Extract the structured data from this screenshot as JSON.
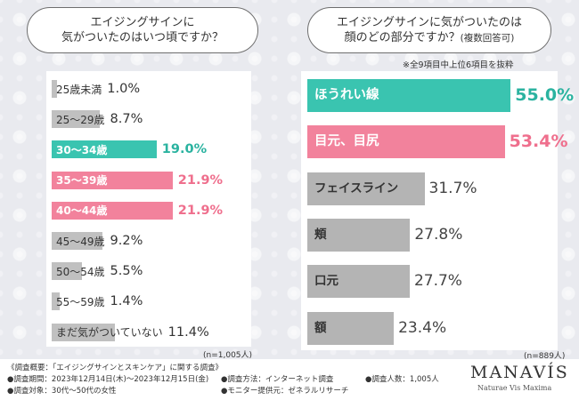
{
  "left_question": {
    "line1": "エイジングサインに",
    "line2": "気がついたのはいつ頃ですか？"
  },
  "right_question": {
    "line1": "エイジングサインに気がついたのは",
    "line2": "顔のどの部分ですか？",
    "line2_small": "(複数回答可)"
  },
  "right_note": "※全9項目中上位6項目を抜粋",
  "left_n": "(n=1,005人)",
  "right_n": "(n=889人)",
  "chart_data": [
    {
      "type": "bar",
      "title": "エイジングサインに気がついたのはいつ頃ですか？",
      "unit": "%",
      "categories": [
        "25歳未満",
        "25〜29歳",
        "30〜34歳",
        "35〜39歳",
        "40〜44歳",
        "45〜49歳",
        "50〜54歳",
        "55〜59歳",
        "まだ気がついていない"
      ],
      "values": [
        1.0,
        8.7,
        19.0,
        21.9,
        21.9,
        9.2,
        5.5,
        1.4,
        11.4
      ],
      "value_labels": [
        "1.0%",
        "8.7%",
        "19.0%",
        "21.9%",
        "21.9%",
        "9.2%",
        "5.5%",
        "1.4%",
        "11.4%"
      ],
      "highlight": [
        "none",
        "none",
        "teal",
        "pink",
        "pink",
        "none",
        "none",
        "none",
        "none"
      ],
      "orientation": "horizontal"
    },
    {
      "type": "bar",
      "title": "エイジングサインに気がついたのは顔のどの部分ですか？(複数回答可)",
      "unit": "%",
      "categories": [
        "ほうれい線",
        "目元、目尻",
        "フェイスライン",
        "頬",
        "口元",
        "額"
      ],
      "values": [
        55.0,
        53.4,
        31.7,
        27.8,
        27.7,
        23.4
      ],
      "value_labels": [
        "55.0%",
        "53.4%",
        "31.7%",
        "27.8%",
        "27.7%",
        "23.4%"
      ],
      "highlight": [
        "teal",
        "pink",
        "none",
        "none",
        "none",
        "none"
      ],
      "orientation": "horizontal"
    }
  ],
  "colors": {
    "teal": "#3ac4b0",
    "pink": "#f2829c",
    "gray": "#c0c0c0"
  },
  "footer": {
    "outline": "《調査概要：「エイジングサインとスキンケア」に関する調査》",
    "period": "●調査期間：2023年12月14日(木)〜2023年12月15日(金)",
    "method": "●調査方法：インターネット調査",
    "count": "●調査人数：1,005人",
    "target": "●調査対象：30代〜50代の女性",
    "provider": "●モニター提供元：ゼネラルリサーチ"
  },
  "brand": {
    "name": "MANAVÍS",
    "tagline": "Naturae Vis Maxima"
  }
}
